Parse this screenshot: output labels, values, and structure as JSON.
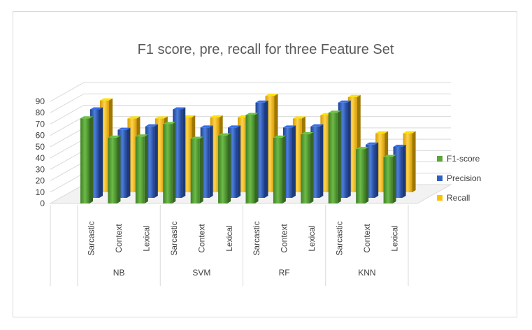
{
  "chart_data": {
    "type": "bar",
    "title": "F1 score, pre, recall for three Feature Set",
    "groups": [
      {
        "name": "NB",
        "categories": [
          "Sarcastic",
          "Context",
          "Lexical"
        ]
      },
      {
        "name": "SVM",
        "categories": [
          "Sarcastic",
          "Context",
          "Lexical"
        ]
      },
      {
        "name": "RF",
        "categories": [
          "Sarcastic",
          "Context",
          "Lexical"
        ]
      },
      {
        "name": "KNN",
        "categories": [
          "Sarcastic",
          "Context",
          "Lexical"
        ]
      }
    ],
    "series": [
      {
        "name": "F1-score",
        "color": "#5aa63a",
        "values": [
          75,
          58,
          59,
          70,
          57,
          60,
          78,
          58,
          61,
          80,
          48,
          41
        ]
      },
      {
        "name": "Precision",
        "color": "#2f5fc4",
        "values": [
          78,
          60,
          63,
          78,
          62,
          62,
          84,
          62,
          63,
          84,
          47,
          45
        ]
      },
      {
        "name": "Recall",
        "color": "#ffc000",
        "values": [
          81,
          65,
          65,
          66,
          66,
          66,
          85,
          65,
          68,
          84,
          52,
          52
        ]
      }
    ],
    "y_ticks": [
      "0",
      "10",
      "20",
      "30",
      "40",
      "50",
      "60",
      "70",
      "80",
      "90"
    ],
    "ylim": [
      0,
      90
    ],
    "grid": true,
    "legend_position": "right"
  }
}
